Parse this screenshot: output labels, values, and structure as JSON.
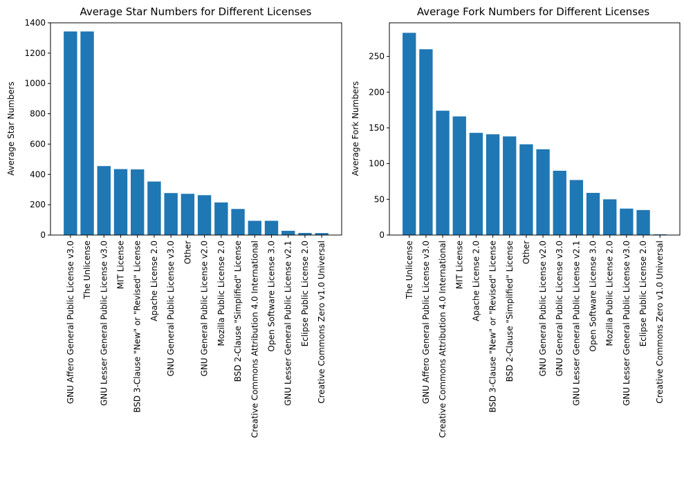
{
  "chart_data": [
    {
      "type": "bar",
      "title": "Average Star Numbers for Different Licenses",
      "xlabel": "",
      "ylabel": "Average Star Numbers",
      "ylim": [
        0,
        1400
      ],
      "yticks": [
        0,
        200,
        400,
        600,
        800,
        1000,
        1200,
        1400
      ],
      "color": "#1f77b4",
      "categories": [
        "GNU Affero General Public License v3.0",
        "The Unlicense",
        "GNU Lesser General Public License v3.0",
        "MIT License",
        "BSD 3-Clause \"New\" or \"Revised\" License",
        "Apache License 2.0",
        "GNU General Public License v3.0",
        "Other",
        "GNU General Public License v2.0",
        "Mozilla Public License 2.0",
        "BSD 2-Clause \"Simplified\" License",
        "Creative Commons Attribution 4.0 International",
        "Open Software License 3.0",
        "GNU Lesser General Public License v2.1",
        "Eclipse Public License 2.0",
        "Creative Commons Zero v1.0 Universal"
      ],
      "values": [
        1343,
        1343,
        455,
        435,
        433,
        353,
        277,
        272,
        263,
        215,
        172,
        94,
        94,
        28,
        14,
        13
      ]
    },
    {
      "type": "bar",
      "title": "Average Fork Numbers for Different Licenses",
      "xlabel": "",
      "ylabel": "Average Fork Numbers",
      "ylim": [
        0,
        297
      ],
      "yticks": [
        0,
        50,
        100,
        150,
        200,
        250
      ],
      "color": "#1f77b4",
      "categories": [
        "The Unlicense",
        "GNU Affero General Public License v3.0",
        "Creative Commons Attribution 4.0 International",
        "MIT License",
        "Apache License 2.0",
        "BSD 3-Clause \"New\" or \"Revised\" License",
        "BSD 2-Clause \"Simplified\" License",
        "Other",
        "GNU General Public License v2.0",
        "GNU General Public License v3.0",
        "GNU Lesser General Public License v2.1",
        "Open Software License 3.0",
        "Mozilla Public License 2.0",
        "GNU Lesser General Public License v3.0",
        "Eclipse Public License 2.0",
        "Creative Commons Zero v1.0 Universal"
      ],
      "values": [
        283,
        260,
        174,
        166,
        143,
        141,
        138,
        127,
        120,
        90,
        77,
        59,
        50,
        37,
        35,
        1
      ]
    }
  ]
}
